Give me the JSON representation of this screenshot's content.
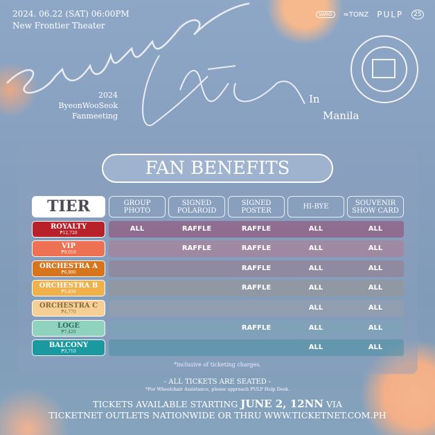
{
  "event": {
    "datetime": "2024. 06.22 (SAT) 06:00PM",
    "venue": "New Frontier Theater",
    "year": "2024",
    "artist": "ByeonWooSeok",
    "type": "Fanmeeting",
    "title": "summer letter",
    "in": "In",
    "city": "Manila"
  },
  "logos": [
    "VARO",
    "TONZ",
    "PULP",
    "25"
  ],
  "heading": "FAN BENEFITS",
  "tier_header": "TIER",
  "columns": [
    "GROUP PHOTO",
    "SIGNED POLAROID",
    "SIGNED POSTER",
    "HI-BYE",
    "SOUVENIR SHOW CARD"
  ],
  "tiers": [
    {
      "name": "ROYALTY",
      "price": "₱12,720",
      "color": "#b8202a",
      "text": "#ffffff",
      "row": "rgba(150,70,110,.55)",
      "cells": [
        "ALL",
        "RAFFLE",
        "RAFFLE",
        "ALL",
        "ALL"
      ]
    },
    {
      "name": "VIP",
      "price": "₱9,010",
      "color": "#ee7154",
      "text": "#ffffff",
      "row": "rgba(190,110,130,.45)",
      "cells": [
        "",
        "RAFFLE",
        "RAFFLE",
        "ALL",
        "ALL"
      ]
    },
    {
      "name": "ORCHESTRA A",
      "price": "₱6,890",
      "color": "#d8741c",
      "text": "#ffffff",
      "row": "rgba(160,110,120,.4)",
      "cells": [
        "",
        "",
        "RAFFLE",
        "ALL",
        "ALL"
      ]
    },
    {
      "name": "ORCHESTRA B",
      "price": "₱5,830",
      "color": "#f0b04a",
      "text": "#ffffff",
      "row": "rgba(160,145,130,.4)",
      "cells": [
        "",
        "",
        "RAFFLE",
        "ALL",
        "ALL"
      ]
    },
    {
      "name": "ORCHESTRA C",
      "price": "₱4,770",
      "color": "#f5cf94",
      "text": "#8a6a40",
      "row": "rgba(170,160,160,.35)",
      "cells": [
        "",
        "",
        "",
        "ALL",
        "ALL"
      ]
    },
    {
      "name": "LOGE",
      "price": "₱7,420",
      "color": "#8fd3bf",
      "text": "#2f6a5e",
      "row": "rgba(120,170,180,.35)",
      "cells": [
        "",
        "",
        "RAFFLE",
        "ALL",
        "ALL"
      ]
    },
    {
      "name": "BALCONY",
      "price": "₱3,710",
      "color": "#1a9aa0",
      "text": "#ffffff",
      "row": "rgba(60,140,160,.45)",
      "cells": [
        "",
        "",
        "",
        "ALL",
        "ALL"
      ]
    }
  ],
  "notes": {
    "inclusive": "*inclusive of ticketing charges.",
    "seated": "- ALL TICKETS ARE SEATED -",
    "wheelchair": "*For Wheelchair Assistance, please approach PULP Help Desk.",
    "avail_pre": "TICKETS AVAILABLE STARTING ",
    "avail_date": "JUNE 2, 12NN",
    "avail_post": " VIA",
    "outlets": "TICKETNET OUTLETS NATIONWIDE OR THRU WWW.TICKETNET.COM.PH"
  }
}
